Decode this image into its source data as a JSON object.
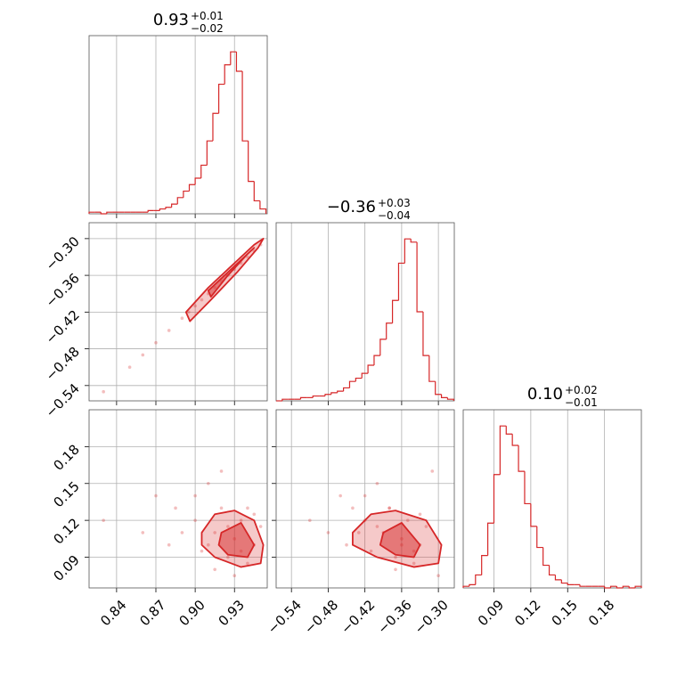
{
  "chart_data": [
    {
      "type": "histogram",
      "title": {
        "value": "0.93",
        "upper": "+0.01",
        "lower": "−0.02"
      },
      "color": "#d62728",
      "bins": [
        0.819,
        0.8235,
        0.828,
        0.8325,
        0.837,
        0.8415,
        0.846,
        0.8505,
        0.855,
        0.8595,
        0.864,
        0.8685,
        0.873,
        0.8775,
        0.882,
        0.8865,
        0.891,
        0.8955,
        0.9,
        0.9045,
        0.909,
        0.9135,
        0.918,
        0.9225,
        0.927,
        0.9315,
        0.936,
        0.9405,
        0.945,
        0.9495,
        0.954
      ],
      "counts": [
        1,
        1,
        0,
        1,
        1,
        1,
        1,
        1,
        1,
        1,
        2,
        2,
        3,
        4,
        6,
        10,
        14,
        18,
        22,
        30,
        45,
        62,
        80,
        92,
        100,
        88,
        45,
        20,
        8,
        3
      ],
      "xlim": [
        0.819,
        0.955
      ],
      "ylim": [
        0,
        110
      ],
      "xticks": [
        0.84,
        0.87,
        0.9,
        0.93
      ],
      "grid": true,
      "xtick_labels": false,
      "ytick_labels": false
    },
    {
      "type": "scatter",
      "color": "#d62728",
      "x": [
        0.83,
        0.85,
        0.86,
        0.87,
        0.88,
        0.89,
        0.895,
        0.9,
        0.905,
        0.91,
        0.915,
        0.92,
        0.925,
        0.93,
        0.935,
        0.94,
        0.945,
        0.95
      ],
      "y": [
        -0.55,
        -0.51,
        -0.49,
        -0.47,
        -0.45,
        -0.43,
        -0.42,
        -0.41,
        -0.4,
        -0.39,
        -0.38,
        -0.37,
        -0.36,
        -0.35,
        -0.34,
        -0.33,
        -0.32,
        -0.31
      ],
      "contours": [
        {
          "x": [
            0.893,
            0.91,
            0.93,
            0.945,
            0.952,
            0.948,
            0.932,
            0.912,
            0.896
          ],
          "y": [
            -0.42,
            -0.38,
            -0.34,
            -0.31,
            -0.3,
            -0.315,
            -0.355,
            -0.4,
            -0.435
          ]
        },
        {
          "x": [
            0.91,
            0.93,
            0.945,
            0.94,
            0.925,
            0.912
          ],
          "y": [
            -0.385,
            -0.345,
            -0.315,
            -0.325,
            -0.36,
            -0.395
          ]
        }
      ],
      "xlim": [
        0.819,
        0.955
      ],
      "ylim": [
        -0.565,
        -0.274
      ],
      "xticks": [
        0.84,
        0.87,
        0.9,
        0.93
      ],
      "yticks": [
        {
          "value": -0.3,
          "label": "−0.30"
        },
        {
          "value": -0.36,
          "label": "−0.36"
        },
        {
          "value": -0.42,
          "label": "−0.42"
        },
        {
          "value": -0.48,
          "label": "−0.48"
        },
        {
          "value": -0.54,
          "label": "−0.54"
        }
      ],
      "grid": true,
      "xtick_labels": false,
      "ytick_labels": true
    },
    {
      "type": "histogram",
      "title": {
        "value": "−0.36",
        "upper": "+0.03",
        "lower": "−0.04"
      },
      "color": "#d62728",
      "bins": [
        -0.565,
        -0.555,
        -0.545,
        -0.535,
        -0.525,
        -0.515,
        -0.505,
        -0.495,
        -0.485,
        -0.475,
        -0.465,
        -0.455,
        -0.445,
        -0.435,
        -0.425,
        -0.415,
        -0.405,
        -0.395,
        -0.385,
        -0.375,
        -0.365,
        -0.355,
        -0.345,
        -0.335,
        -0.325,
        -0.315,
        -0.305,
        -0.295,
        -0.285,
        -0.275
      ],
      "counts": [
        0,
        1,
        1,
        1,
        2,
        2,
        3,
        3,
        4,
        5,
        6,
        8,
        12,
        14,
        17,
        22,
        28,
        38,
        48,
        62,
        85,
        100,
        98,
        55,
        28,
        12,
        4,
        2,
        1
      ],
      "xlim": [
        -0.565,
        -0.274
      ],
      "ylim": [
        0,
        110
      ],
      "xticks": [
        -0.54,
        -0.48,
        -0.42,
        -0.36,
        -0.3
      ],
      "grid": true,
      "xtick_labels": false,
      "ytick_labels": false
    },
    {
      "type": "scatter",
      "color": "#d62728",
      "x": [
        0.83,
        0.86,
        0.87,
        0.88,
        0.885,
        0.89,
        0.9,
        0.905,
        0.91,
        0.915,
        0.92,
        0.925,
        0.93,
        0.935,
        0.94,
        0.945,
        0.95,
        0.92,
        0.93,
        0.94,
        0.91,
        0.935,
        0.925,
        0.945,
        0.9,
        0.915
      ],
      "y": [
        0.12,
        0.11,
        0.14,
        0.1,
        0.13,
        0.11,
        0.12,
        0.095,
        0.15,
        0.11,
        0.13,
        0.09,
        0.105,
        0.12,
        0.085,
        0.1,
        0.115,
        0.16,
        0.075,
        0.13,
        0.1,
        0.095,
        0.115,
        0.125,
        0.14,
        0.08
      ],
      "contours": [
        {
          "x": [
            0.905,
            0.915,
            0.93,
            0.945,
            0.952,
            0.95,
            0.935,
            0.915,
            0.905
          ],
          "y": [
            0.11,
            0.125,
            0.128,
            0.12,
            0.1,
            0.085,
            0.082,
            0.09,
            0.1
          ]
        },
        {
          "x": [
            0.92,
            0.935,
            0.945,
            0.94,
            0.925,
            0.918
          ],
          "y": [
            0.11,
            0.118,
            0.1,
            0.09,
            0.092,
            0.1
          ]
        }
      ],
      "xlim": [
        0.819,
        0.955
      ],
      "ylim": [
        0.065,
        0.21
      ],
      "xticks": [
        0.84,
        0.87,
        {
          "value": 0.9,
          "label": "0.90"
        },
        0.93
      ],
      "yticks": [
        0.09,
        0.12,
        0.15,
        0.18
      ],
      "grid": true,
      "xtick_labels": true,
      "ytick_labels": true
    },
    {
      "type": "scatter",
      "color": "#d62728",
      "x": [
        -0.51,
        -0.48,
        -0.46,
        -0.45,
        -0.44,
        -0.43,
        -0.42,
        -0.41,
        -0.4,
        -0.39,
        -0.38,
        -0.37,
        -0.36,
        -0.35,
        -0.34,
        -0.33,
        -0.32,
        -0.31,
        -0.3,
        -0.38,
        -0.36,
        -0.34,
        -0.4,
        -0.33,
        -0.42,
        -0.37
      ],
      "y": [
        0.12,
        0.11,
        0.14,
        0.1,
        0.13,
        0.11,
        0.12,
        0.095,
        0.15,
        0.11,
        0.13,
        0.09,
        0.105,
        0.12,
        0.085,
        0.1,
        0.115,
        0.16,
        0.075,
        0.13,
        0.1,
        0.095,
        0.115,
        0.125,
        0.14,
        0.08
      ],
      "contours": [
        {
          "x": [
            -0.44,
            -0.41,
            -0.37,
            -0.32,
            -0.295,
            -0.3,
            -0.34,
            -0.4,
            -0.44
          ],
          "y": [
            0.11,
            0.125,
            0.128,
            0.12,
            0.1,
            0.085,
            0.082,
            0.09,
            0.1
          ]
        },
        {
          "x": [
            -0.39,
            -0.36,
            -0.33,
            -0.34,
            -0.37,
            -0.395
          ],
          "y": [
            0.11,
            0.118,
            0.1,
            0.09,
            0.092,
            0.1
          ]
        }
      ],
      "xlim": [
        -0.565,
        -0.274
      ],
      "ylim": [
        0.065,
        0.21
      ],
      "xticks": [
        {
          "value": -0.54,
          "label": "−0.54"
        },
        {
          "value": -0.48,
          "label": "−0.48"
        },
        {
          "value": -0.42,
          "label": "−0.42"
        },
        {
          "value": -0.36,
          "label": "−0.36"
        },
        {
          "value": -0.3,
          "label": "−0.30"
        }
      ],
      "yticks": [
        0.09,
        0.12,
        0.15,
        0.18
      ],
      "grid": true,
      "xtick_labels": true,
      "ytick_labels": false
    },
    {
      "type": "histogram",
      "title": {
        "value": "0.10",
        "upper": "+0.02",
        "lower": "−0.01"
      },
      "color": "#d62728",
      "bins": [
        0.065,
        0.07,
        0.075,
        0.08,
        0.085,
        0.09,
        0.095,
        0.1,
        0.105,
        0.11,
        0.115,
        0.12,
        0.125,
        0.13,
        0.135,
        0.14,
        0.145,
        0.15,
        0.155,
        0.16,
        0.165,
        0.17,
        0.175,
        0.18,
        0.185,
        0.19,
        0.195,
        0.2,
        0.205,
        0.21
      ],
      "counts": [
        1,
        2,
        8,
        20,
        40,
        70,
        100,
        95,
        88,
        72,
        52,
        38,
        25,
        14,
        8,
        5,
        3,
        2,
        2,
        1,
        1,
        1,
        1,
        0,
        1,
        0,
        1,
        0,
        1
      ],
      "xlim": [
        0.065,
        0.21
      ],
      "ylim": [
        0,
        110
      ],
      "xticks": [
        0.09,
        0.12,
        0.15,
        0.18
      ],
      "grid": true,
      "xtick_labels": true,
      "ytick_labels": false
    }
  ]
}
